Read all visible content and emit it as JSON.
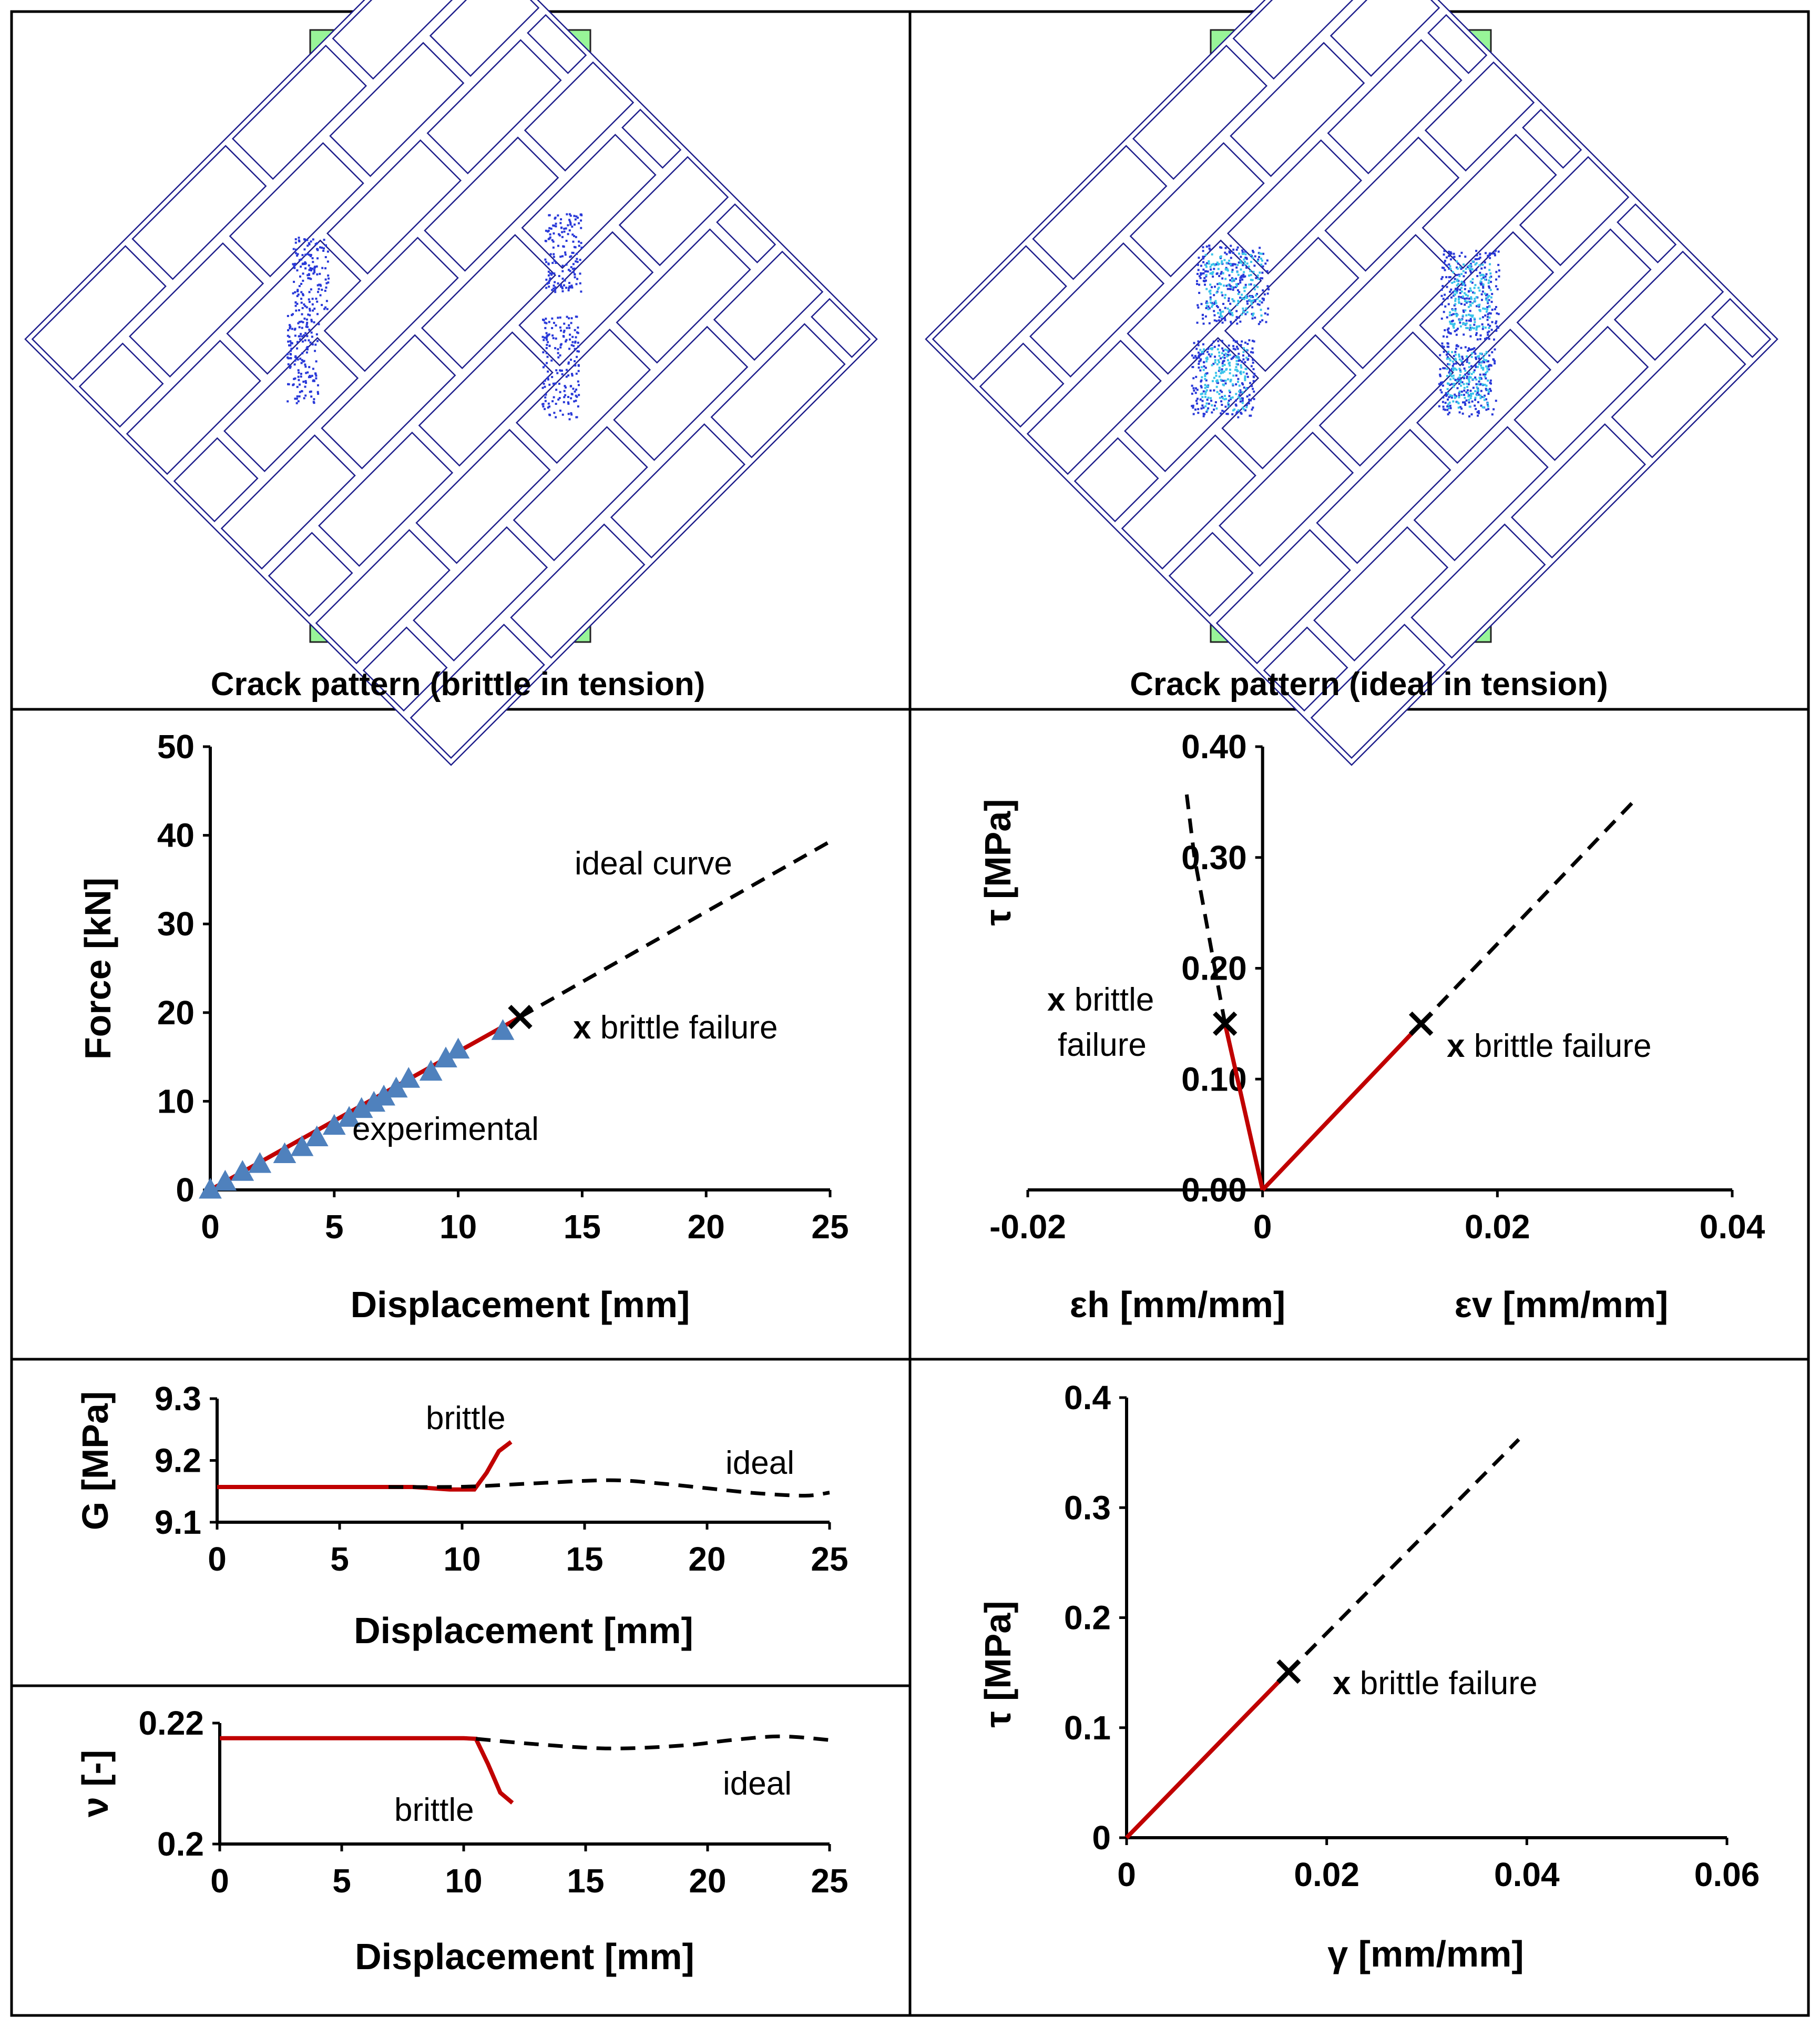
{
  "panels": {
    "crack_brittle_title": "Crack pattern (brittle in tension)",
    "crack_ideal_title": "Crack pattern (ideal in tension)"
  },
  "colors": {
    "red": "#c00000",
    "experimental": "#4f81bd",
    "plate": "#98f598",
    "mesh": "#1e1e8c"
  },
  "chart_data": [
    {
      "id": "force_displacement",
      "type": "line",
      "xlabel": "Displacement [mm]",
      "ylabel": "Force [kN]",
      "xlim": [
        0,
        25
      ],
      "ylim": [
        0,
        50
      ],
      "xticks": [
        0,
        5,
        10,
        15,
        20,
        25
      ],
      "yticks": [
        0,
        10,
        20,
        30,
        40,
        50
      ],
      "series": [
        {
          "name": "brittle",
          "style": "red",
          "x": [
            0,
            12.5
          ],
          "y": [
            0,
            19.5
          ]
        },
        {
          "name": "ideal curve",
          "style": "dash",
          "x": [
            12.5,
            25
          ],
          "y": [
            19.5,
            39.3
          ]
        },
        {
          "name": "experimental",
          "style": "triangle",
          "x": [
            0,
            0.6,
            1.3,
            2.0,
            3.0,
            3.7,
            4.3,
            5.0,
            5.6,
            6.1,
            6.6,
            7.0,
            7.5,
            8.0,
            8.9,
            9.5,
            10.0,
            11.8
          ],
          "y": [
            0,
            0.9,
            2.0,
            2.9,
            4.0,
            4.8,
            5.9,
            7.2,
            8.1,
            9.1,
            9.8,
            10.5,
            11.4,
            12.5,
            13.3,
            14.8,
            15.8,
            17.9
          ]
        }
      ],
      "failure_point": {
        "x": 12.5,
        "y": 19.5
      },
      "annotations": {
        "ideal": "ideal curve",
        "failure": "brittle failure",
        "failure_mark": "x",
        "experimental": "experimental"
      }
    },
    {
      "id": "tau_strain",
      "type": "line",
      "xlabel_left": "εh [mm/mm]",
      "xlabel_right": "εv [mm/mm]",
      "ylabel": "τ [MPa]",
      "xlim": [
        -0.02,
        0.04
      ],
      "ylim": [
        0,
        0.4
      ],
      "xticks": [
        -0.02,
        0,
        0.02,
        0.04
      ],
      "xtick_labels": [
        "-0.02",
        "0",
        "0.02",
        "0.04"
      ],
      "yticks": [
        0,
        0.1,
        0.2,
        0.3,
        0.4
      ],
      "ytick_labels": [
        "0.00",
        "0.10",
        "0.20",
        "0.30",
        "0.40"
      ],
      "series": [
        {
          "name": "brittle εh",
          "style": "red",
          "x": [
            0,
            -0.0032
          ],
          "y": [
            0,
            0.15
          ]
        },
        {
          "name": "brittle εv",
          "style": "red",
          "x": [
            0,
            0.0135
          ],
          "y": [
            0,
            0.15
          ]
        },
        {
          "name": "ideal εh",
          "style": "dash",
          "x": [
            -0.0032,
            -0.0058,
            -0.0065
          ],
          "y": [
            0.15,
            0.3,
            0.36
          ]
        },
        {
          "name": "ideal εv",
          "style": "dash",
          "x": [
            0.0135,
            0.032
          ],
          "y": [
            0.15,
            0.355
          ]
        }
      ],
      "failure_points": [
        {
          "x": -0.0032,
          "y": 0.15
        },
        {
          "x": 0.0135,
          "y": 0.15
        }
      ],
      "annotations": {
        "failure_mark": "x",
        "left_line1": "brittle",
        "left_line2": "failure",
        "right": "brittle failure"
      }
    },
    {
      "id": "G_displacement",
      "type": "line",
      "xlabel": "Displacement [mm]",
      "ylabel": "G [MPa]",
      "xlim": [
        0,
        25
      ],
      "ylim": [
        9.1,
        9.3
      ],
      "xticks": [
        0,
        5,
        10,
        15,
        20,
        25
      ],
      "yticks": [
        9.1,
        9.2,
        9.3
      ],
      "ytick_labels": [
        "9.1",
        "9.2",
        "9.3"
      ],
      "series": [
        {
          "name": "brittle",
          "style": "red",
          "x": [
            0,
            8,
            9.5,
            10.5,
            11.0,
            11.5,
            12.0
          ],
          "y": [
            9.157,
            9.157,
            9.153,
            9.153,
            9.18,
            9.215,
            9.23
          ]
        },
        {
          "name": "ideal",
          "style": "dash",
          "x": [
            7,
            9,
            10.5,
            13,
            16,
            18,
            20,
            22,
            24,
            25
          ],
          "y": [
            9.157,
            9.157,
            9.158,
            9.163,
            9.168,
            9.163,
            9.155,
            9.147,
            9.143,
            9.148
          ]
        }
      ],
      "annotations": {
        "brittle": "brittle",
        "ideal": "ideal"
      }
    },
    {
      "id": "nu_displacement",
      "type": "line",
      "xlabel": "Displacement [mm]",
      "ylabel": "ν [-]",
      "xlim": [
        0,
        25
      ],
      "ylim": [
        0.2,
        0.22
      ],
      "xticks": [
        0,
        5,
        10,
        15,
        20,
        25
      ],
      "yticks": [
        0.2,
        0.22
      ],
      "ytick_labels": [
        "0.2",
        "0.22"
      ],
      "series": [
        {
          "name": "brittle",
          "style": "red",
          "x": [
            0,
            10,
            10.5,
            11.0,
            11.5,
            12.0
          ],
          "y": [
            0.2175,
            0.2175,
            0.2174,
            0.2132,
            0.2085,
            0.2068
          ]
        },
        {
          "name": "ideal",
          "style": "dash",
          "x": [
            10.5,
            13,
            16,
            19,
            21,
            23,
            25
          ],
          "y": [
            0.2174,
            0.2165,
            0.2158,
            0.2163,
            0.2172,
            0.2178,
            0.2172
          ]
        }
      ],
      "annotations": {
        "brittle": "brittle",
        "ideal": "ideal"
      }
    },
    {
      "id": "tau_gamma",
      "type": "line",
      "xlabel": "γ  [mm/mm]",
      "ylabel": "τ [MPa]",
      "xlim": [
        0,
        0.06
      ],
      "ylim": [
        0,
        0.4
      ],
      "xticks": [
        0,
        0.02,
        0.04,
        0.06
      ],
      "xtick_labels": [
        "0",
        "0.02",
        "0.04",
        "0.06"
      ],
      "yticks": [
        0,
        0.1,
        0.2,
        0.3,
        0.4
      ],
      "ytick_labels": [
        "0",
        "0.1",
        "0.2",
        "0.3",
        "0.4"
      ],
      "series": [
        {
          "name": "brittle",
          "style": "red",
          "x": [
            0,
            0.0162
          ],
          "y": [
            0,
            0.151
          ]
        },
        {
          "name": "ideal",
          "style": "dash",
          "x": [
            0.0162,
            0.0392
          ],
          "y": [
            0.151,
            0.362
          ]
        }
      ],
      "failure_point": {
        "x": 0.0162,
        "y": 0.151
      },
      "annotations": {
        "failure_mark": "x",
        "failure": "brittle failure"
      }
    }
  ]
}
